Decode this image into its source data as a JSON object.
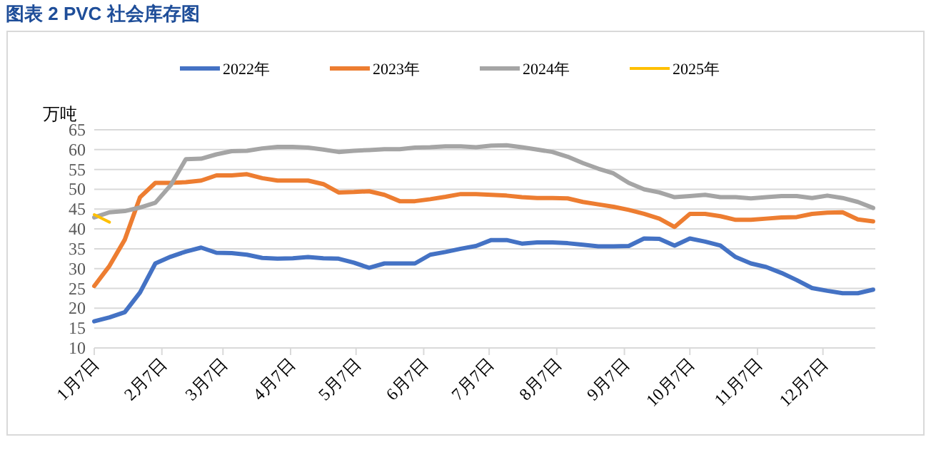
{
  "chart_data": {
    "type": "line",
    "title": "图表 2 PVC 社会库存图",
    "ylabel": "万吨",
    "x": [
      "--01-07",
      "--01-14",
      "--01-21",
      "--01-28",
      "--02-04",
      "--02-11",
      "--02-18",
      "--02-25",
      "--03-04",
      "--03-11",
      "--03-18",
      "--03-25",
      "--04-01",
      "--04-08",
      "--04-15",
      "--04-22",
      "--04-29",
      "--05-06",
      "--05-13",
      "--05-20",
      "--05-27",
      "--06-03",
      "--06-10",
      "--06-17",
      "--06-24",
      "--07-01",
      "--07-08",
      "--07-15",
      "--07-22",
      "--07-29",
      "--08-05",
      "--08-12",
      "--08-19",
      "--08-26",
      "--09-02",
      "--09-09",
      "--09-16",
      "--09-23",
      "--09-30",
      "--10-07",
      "--10-14",
      "--10-21",
      "--10-28",
      "--11-04",
      "--11-11",
      "--11-18",
      "--11-25",
      "--12-02",
      "--12-09",
      "--12-16",
      "--12-23",
      "--12-30"
    ],
    "series": [
      {
        "name": "2022年",
        "color": "#4472c4",
        "values": [
          16.7,
          17.7,
          19,
          24,
          31.3,
          33,
          34.3,
          35.3,
          34,
          33.9,
          33.5,
          32.7,
          32.5,
          32.6,
          32.9,
          32.6,
          32.5,
          31.5,
          30.2,
          31.3,
          31.3,
          31.3,
          33.5,
          34.2,
          35,
          35.7,
          37.2,
          37.2,
          36.3,
          36.6,
          36.6,
          36.4,
          36,
          35.6,
          35.6,
          35.7,
          37.6,
          37.5,
          35.8,
          37.6,
          36.8,
          35.8,
          32.9,
          31.3,
          30.4,
          28.9,
          27.1,
          25.1,
          24.4,
          23.8,
          23.8,
          24.7
        ]
      },
      {
        "name": "2023年",
        "color": "#ed7d31",
        "values": [
          25.6,
          30.7,
          37.3,
          48,
          51.6,
          51.6,
          51.8,
          52.2,
          53.5,
          53.5,
          53.8,
          52.8,
          52.2,
          52.2,
          52.2,
          51.3,
          49.2,
          49.3,
          49.5,
          48.6,
          47,
          47,
          47.5,
          48.1,
          48.8,
          48.8,
          48.6,
          48.4,
          48,
          47.8,
          47.8,
          47.7,
          46.8,
          46.2,
          45.6,
          44.8,
          43.8,
          42.6,
          40.5,
          43.8,
          43.8,
          43.2,
          42.3,
          42.3,
          42.6,
          42.9,
          43,
          43.8,
          44.1,
          44.2,
          42.4,
          41.9
        ]
      },
      {
        "name": "2024年",
        "color": "#a5a5a5",
        "values": [
          42.9,
          44.2,
          44.5,
          45.4,
          46.6,
          51,
          57.6,
          57.7,
          58.8,
          59.6,
          59.7,
          60.3,
          60.7,
          60.7,
          60.5,
          60,
          59.4,
          59.7,
          59.9,
          60.1,
          60.1,
          60.5,
          60.6,
          60.8,
          60.8,
          60.6,
          61,
          61.1,
          60.6,
          60,
          59.4,
          58.2,
          56.6,
          55.2,
          54,
          51.6,
          50,
          49.2,
          48,
          48.3,
          48.6,
          48,
          48,
          47.7,
          48,
          48.3,
          48.3,
          47.8,
          48.4,
          47.8,
          46.8,
          45.3
        ]
      },
      {
        "name": "2025年",
        "color": "#ffc000",
        "x": [
          "--01-07",
          "--01-14"
        ],
        "values": [
          43.6,
          41.7
        ]
      }
    ],
    "xlim": [
      "--01-07",
      "--12-31"
    ],
    "xticks": [
      {
        "value": "--01-07",
        "label": "1月7日"
      },
      {
        "value": "--02-07",
        "label": "2月7日"
      },
      {
        "value": "--03-07",
        "label": "3月7日"
      },
      {
        "value": "--04-07",
        "label": "4月7日"
      },
      {
        "value": "--05-07",
        "label": "5月7日"
      },
      {
        "value": "--06-07",
        "label": "6月7日"
      },
      {
        "value": "--07-07",
        "label": "7月7日"
      },
      {
        "value": "--08-07",
        "label": "8月7日"
      },
      {
        "value": "--09-07",
        "label": "9月7日"
      },
      {
        "value": "--10-07",
        "label": "10月7日"
      },
      {
        "value": "--11-07",
        "label": "11月7日"
      },
      {
        "value": "--12-07",
        "label": "12月7日"
      }
    ],
    "ylim": [
      10,
      65
    ],
    "yticks": [
      10,
      15,
      20,
      25,
      30,
      35,
      40,
      45,
      50,
      55,
      60,
      65
    ],
    "grid": "y",
    "legend": "top",
    "marker": "none",
    "line_style": "solid"
  }
}
